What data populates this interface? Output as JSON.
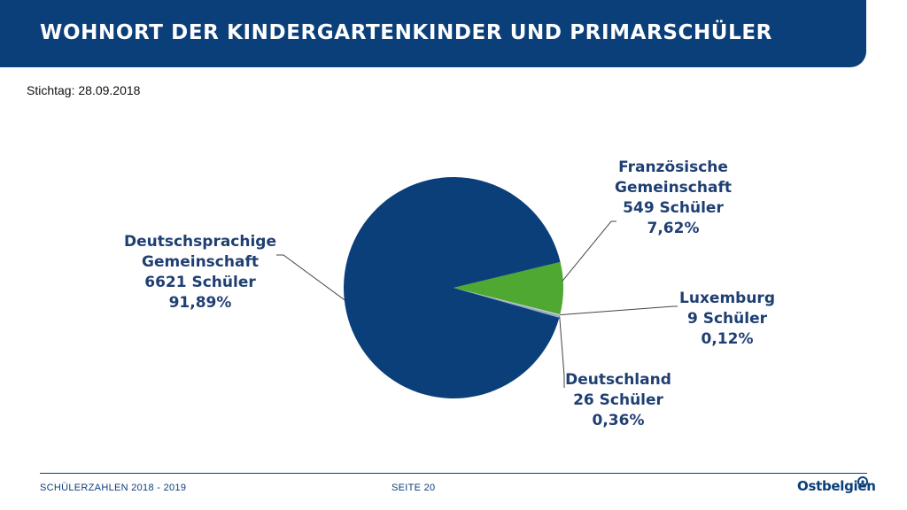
{
  "header": {
    "title": "WOHNORT DER KINDERGARTENKINDER UND PRIMARSCHÜLER"
  },
  "subtitle": "Stichtag: 28.09.2018",
  "footer": {
    "left": "SCHÜLERZAHLEN 2018 - 2019",
    "center": "SEITE 20",
    "brand": "Ostbelgien"
  },
  "colors": {
    "header": "#0b3f7a",
    "text": "#1f3f73"
  },
  "chart_data": {
    "type": "pie",
    "slices": [
      {
        "name": "Französische Gemeinschaft",
        "lines": [
          "Französische",
          "Gemeinschaft",
          "549 Schüler",
          "7,62%"
        ],
        "count": 549,
        "percent": 7.62,
        "color": "#4ea831"
      },
      {
        "name": "Luxemburg",
        "lines": [
          "Luxemburg",
          "9 Schüler",
          "0,12%"
        ],
        "count": 9,
        "percent": 0.12,
        "color": "#c9d3df"
      },
      {
        "name": "Deutschland",
        "lines": [
          "Deutschland",
          "26 Schüler",
          "0,36%"
        ],
        "count": 26,
        "percent": 0.36,
        "color": "#9aaac0"
      },
      {
        "name": "Deutschsprachige Gemeinschaft",
        "lines": [
          "Deutschsprachige",
          "Gemeinschaft",
          "6621 Schüler",
          "91,89%"
        ],
        "count": 6621,
        "percent": 91.89,
        "color": "#0b3f7a"
      }
    ]
  }
}
